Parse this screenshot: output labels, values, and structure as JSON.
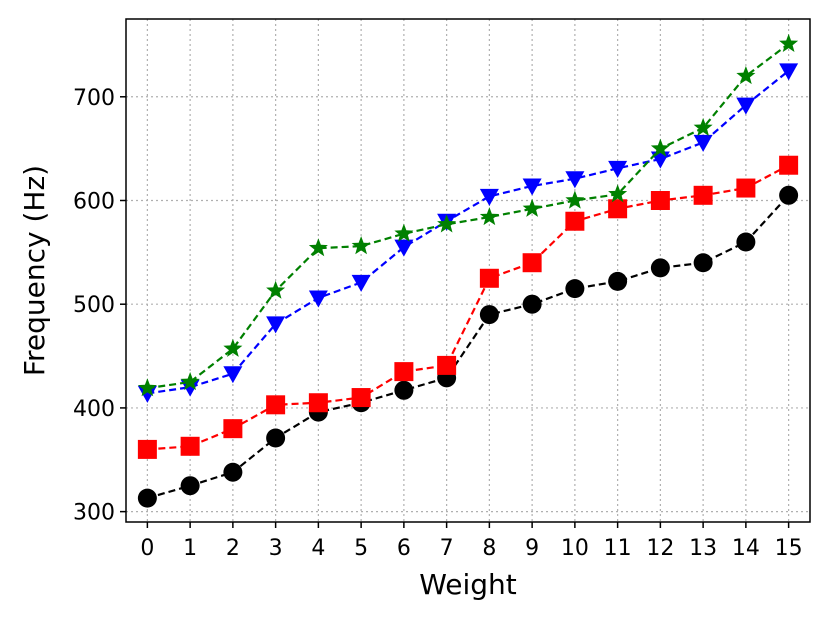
{
  "chart_data": {
    "type": "line",
    "title": "",
    "xlabel": "Weight",
    "ylabel": "Frequency (Hz)",
    "x": [
      0,
      1,
      2,
      3,
      4,
      5,
      6,
      7,
      8,
      9,
      10,
      11,
      12,
      13,
      14,
      15
    ],
    "xlim": [
      -0.5,
      15.5
    ],
    "ylim": [
      290,
      775
    ],
    "yticks": [
      300,
      400,
      500,
      600,
      700
    ],
    "grid": true,
    "series": [
      {
        "color": "#000000",
        "marker": "circle",
        "values": [
          313,
          325,
          338,
          371,
          396,
          405,
          417,
          429,
          490,
          500,
          515,
          522,
          535,
          540,
          560,
          605
        ]
      },
      {
        "color": "#ff0000",
        "marker": "square",
        "values": [
          360,
          363,
          380,
          403,
          405,
          410,
          435,
          441,
          525,
          540,
          580,
          592,
          600,
          605,
          612,
          634
        ]
      },
      {
        "color": "#0000ff",
        "marker": "triangle-down",
        "values": [
          414,
          420,
          433,
          481,
          506,
          521,
          555,
          580,
          604,
          614,
          621,
          631,
          640,
          656,
          692,
          725
        ]
      },
      {
        "color": "#008000",
        "marker": "star",
        "values": [
          419,
          425,
          457,
          513,
          554,
          556,
          568,
          577,
          584,
          592,
          600,
          606,
          650,
          670,
          720,
          751
        ]
      }
    ]
  }
}
